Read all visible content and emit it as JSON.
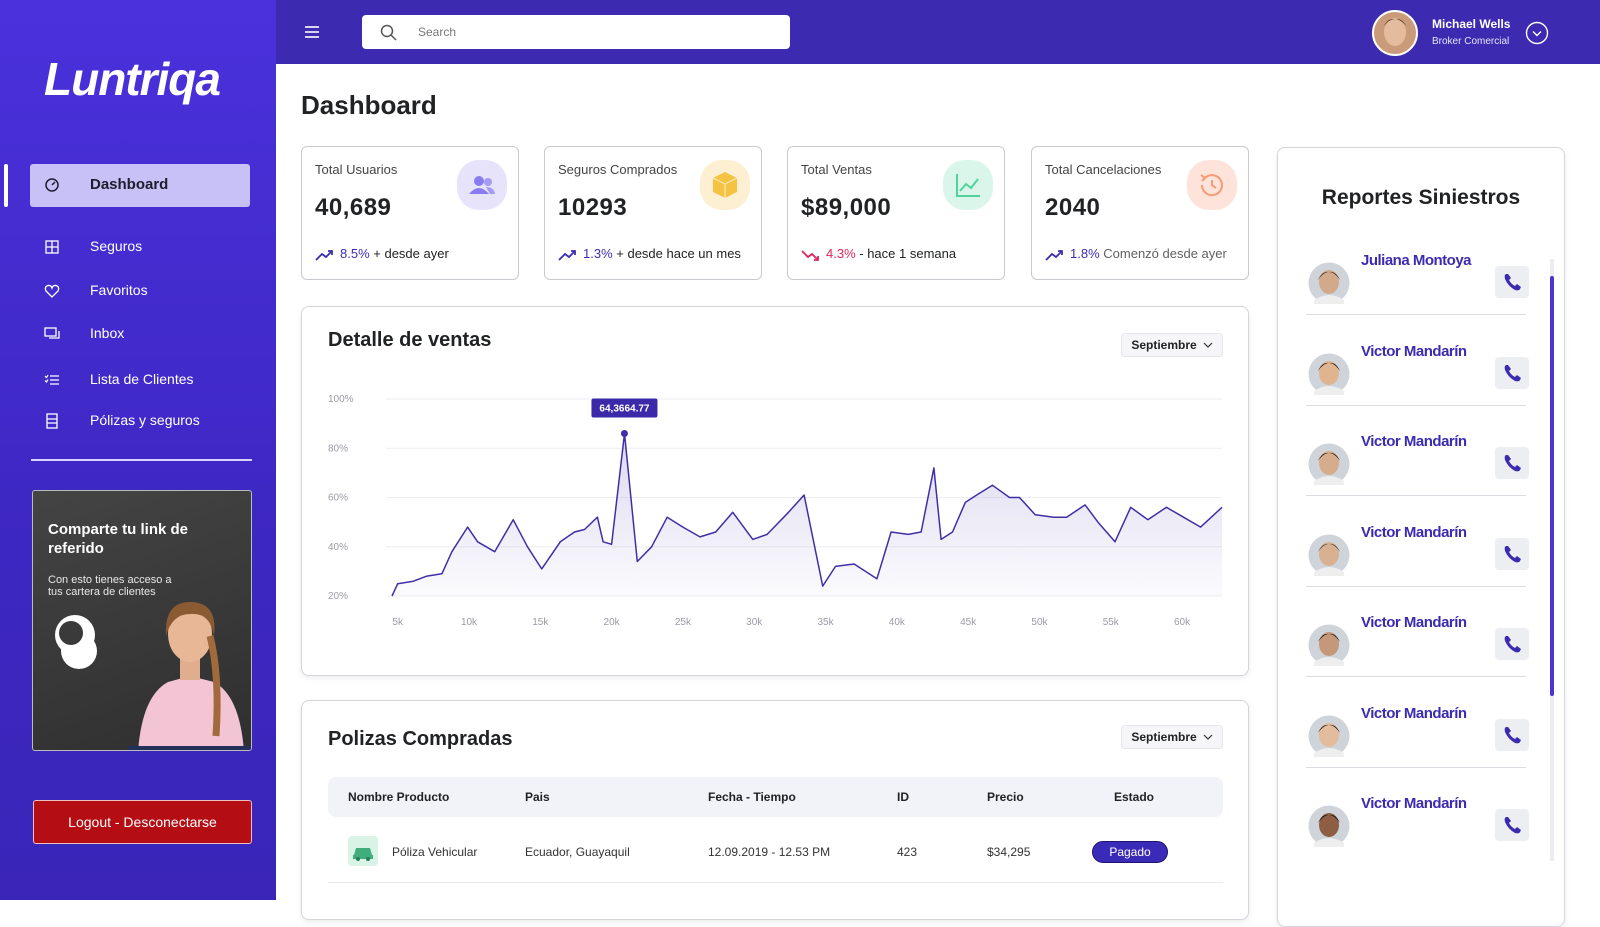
{
  "sidebar": {
    "logo": "Luntriqa",
    "nav": [
      "Dashboard",
      "Seguros",
      "Favoritos",
      "Inbox",
      "Lista de Clientes",
      "Pólizas y seguros"
    ],
    "promo": {
      "title": "Comparte  tu link de referido",
      "text": "Con esto tienes acceso a tus cartera de clientes"
    },
    "logout": "Logout - Desconectarse"
  },
  "header": {
    "search_placeholder": "Search",
    "user_name": "Michael Wells",
    "user_role": "Broker Comercial"
  },
  "page_title": "Dashboard",
  "stats": [
    {
      "label": "Total Usuarios",
      "value": "40,689",
      "change": "8.5%",
      "note": "+ desde ayer",
      "trend": "up",
      "color": "#e6e3fb",
      "icon_color": "#8a7cf0"
    },
    {
      "label": "Seguros Comprados",
      "value": "10293",
      "change": "1.3%",
      "note": "+ desde hace un mes",
      "trend": "up",
      "color": "#fdf0d2",
      "icon_color": "#f5c344"
    },
    {
      "label": "Total Ventas",
      "value": "$89,000",
      "change": "4.3%",
      "note": "-  hace 1 semana",
      "trend": "down",
      "color": "#daf6ea",
      "icon_color": "#4fd39a"
    },
    {
      "label": "Total Cancelaciones",
      "value": "2040",
      "change": "1.8%",
      "note": "Comenzó desde ayer",
      "trend": "up",
      "color": "#fde3d9",
      "icon_color": "#f79a76"
    }
  ],
  "chart_data": {
    "type": "line",
    "title": "Detalle de ventas",
    "filter": "Septiembre",
    "annotation": "64,3664.77",
    "color": "#3f2fa6",
    "grid": true,
    "x": [
      4600,
      5000,
      6100,
      7000,
      8100,
      8800,
      9900,
      10600,
      11800,
      13100,
      14100,
      15100,
      16400,
      17400,
      18100,
      19000,
      19400,
      20000,
      20900,
      21800,
      22800,
      23900,
      25000,
      26200,
      27300,
      28500,
      29900,
      30900,
      32400,
      33500,
      34800,
      35700,
      37000,
      38600,
      39600,
      40800,
      41700,
      42600,
      43100,
      43900,
      44800,
      45600,
      46700,
      47900,
      48600,
      49700,
      51000,
      51900,
      53200,
      54100,
      55300,
      56400,
      57600,
      58900,
      60100,
      61300,
      62800
    ],
    "values": [
      20,
      25,
      26,
      28,
      29,
      38,
      48,
      42,
      38,
      51,
      40,
      31,
      42,
      46,
      47,
      52,
      42,
      41,
      86,
      34,
      40,
      52,
      48,
      44,
      46,
      54,
      43,
      45,
      54,
      61,
      24,
      32,
      33,
      27,
      46,
      45,
      46,
      72,
      43,
      46,
      58,
      61,
      65,
      60,
      60,
      53,
      52,
      52,
      57,
      50,
      42,
      56,
      51,
      56,
      52,
      48,
      56
    ],
    "xlim": [
      4600,
      62800
    ],
    "ylim": [
      20,
      100
    ],
    "xticks": [
      {
        "value": 5000,
        "label": "5k"
      },
      {
        "value": 10000,
        "label": "10k"
      },
      {
        "value": 15000,
        "label": "15k"
      },
      {
        "value": 20000,
        "label": "20k"
      },
      {
        "value": 25000,
        "label": "25k"
      },
      {
        "value": 30000,
        "label": "30k"
      },
      {
        "value": 35000,
        "label": "35k"
      },
      {
        "value": 40000,
        "label": "40k"
      },
      {
        "value": 45000,
        "label": "45k"
      },
      {
        "value": 50000,
        "label": "50k"
      },
      {
        "value": 55000,
        "label": "55k"
      },
      {
        "value": 60000,
        "label": "60k"
      }
    ],
    "yticks": [
      {
        "value": 20,
        "label": "20%"
      },
      {
        "value": 40,
        "label": "40%"
      },
      {
        "value": 60,
        "label": "60%"
      },
      {
        "value": 80,
        "label": "80%"
      },
      {
        "value": 100,
        "label": "100%"
      }
    ]
  },
  "table": {
    "title": "Polizas Compradas",
    "filter": "Septiembre",
    "columns": [
      "Nombre Producto",
      "Pais",
      "Fecha - Tiempo",
      "ID",
      "Precio",
      "Estado"
    ],
    "rows": [
      [
        "Póliza Vehicular",
        "Ecuador, Guayaquil",
        "12.09.2019 - 12.53 PM",
        "423",
        "$34,295",
        "Pagado"
      ]
    ]
  },
  "reports": {
    "title": "Reportes Siniestros",
    "items": [
      "Juliana Montoya",
      "Victor Mandarín",
      "Victor Mandarín",
      "Victor Mandarín",
      "Victor Mandarín",
      "Victor Mandarín",
      "Victor Mandarín"
    ]
  }
}
